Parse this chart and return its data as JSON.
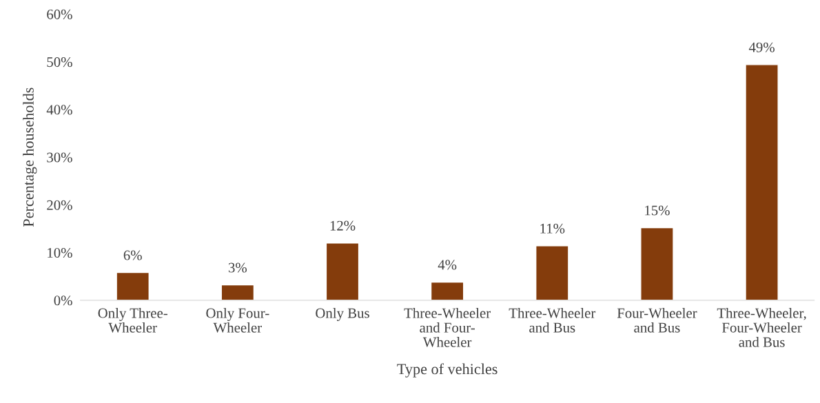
{
  "chart_data": {
    "type": "bar",
    "xlabel": "Type of vehicles",
    "ylabel": "Percentage households",
    "categories": [
      "Only Three-\nWheeler",
      "Only Four-\nWheeler",
      "Only Bus",
      "Three-Wheeler\nand Four-\nWheeler",
      "Three-Wheeler\nand Bus",
      "Four-Wheeler\nand Bus",
      "Three-Wheeler,\nFour-Wheeler\nand Bus"
    ],
    "values": [
      5.8,
      3.2,
      12.0,
      3.8,
      11.4,
      15.2,
      49.4
    ],
    "value_labels": [
      "6%",
      "3%",
      "12%",
      "4%",
      "11%",
      "15%",
      "49%"
    ],
    "color": "#843c0c",
    "ylim": [
      0,
      60
    ],
    "yticks": [
      {
        "value": 0,
        "label": "0%"
      },
      {
        "value": 10,
        "label": "10%"
      },
      {
        "value": 20,
        "label": "20%"
      },
      {
        "value": 30,
        "label": "30%"
      },
      {
        "value": 40,
        "label": "40%"
      },
      {
        "value": 50,
        "label": "50%"
      },
      {
        "value": 60,
        "label": "60%"
      }
    ],
    "grid": false,
    "legend": false
  }
}
